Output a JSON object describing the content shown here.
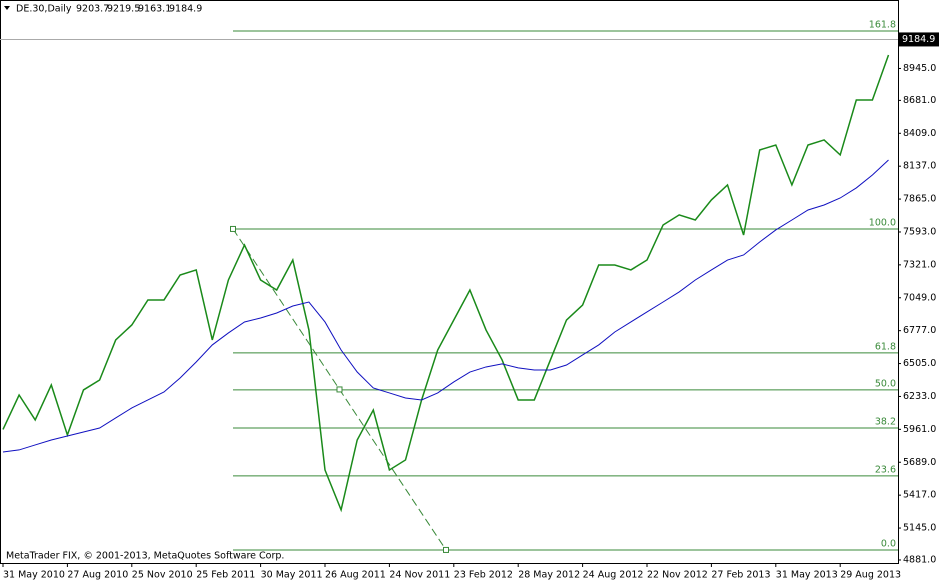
{
  "chart_data": {
    "type": "line",
    "symbol": "DE.30,Daily",
    "ohlc": [
      9203.7,
      9219.5,
      9163.1,
      9184.9
    ],
    "copyright": "MetaTrader FIX, © 2001-2013, MetaQuotes Software Corp.",
    "last_price": 9184.9,
    "categories": [
      "31 May 2010",
      null,
      null,
      null,
      "27 Aug 2010",
      null,
      null,
      null,
      "25 Nov 2010",
      null,
      null,
      null,
      "25 Feb 2011",
      null,
      null,
      null,
      "30 May 2011",
      null,
      null,
      null,
      "26 Aug 2011",
      null,
      null,
      null,
      "24 Nov 2011",
      null,
      null,
      null,
      "23 Feb 2012",
      null,
      null,
      null,
      "28 May 2012",
      null,
      null,
      null,
      "24 Aug 2012",
      null,
      null,
      null,
      "22 Nov 2012",
      null,
      null,
      null,
      "27 Feb 2013",
      null,
      null,
      null,
      "31 May 2013",
      null,
      null,
      null,
      "29 Aug 2013",
      null,
      null,
      null
    ],
    "series": [
      {
        "color": "#1a8a1a",
        "values": [
          5960,
          6245,
          6039,
          6328,
          5915,
          6287,
          6369,
          6700,
          6824,
          7031,
          7031,
          7237,
          7279,
          6700,
          7196,
          7485,
          7196,
          7113,
          7361,
          6783,
          5625,
          5295,
          5873,
          6121,
          5625,
          5708,
          6204,
          6617,
          6865,
          7113,
          6783,
          6535,
          6204,
          6204,
          6535,
          6865,
          6989,
          7320,
          7320,
          7279,
          7361,
          7651,
          7734,
          7692,
          7858,
          7982,
          7568,
          8271,
          8312,
          7982,
          8312,
          8354,
          8230,
          8684,
          8684,
          9056
        ]
      },
      {
        "color": "#1010c0",
        "values": [
          5774,
          5791,
          5832,
          5873,
          5906,
          5939,
          5972,
          6055,
          6138,
          6204,
          6270,
          6386,
          6518,
          6659,
          6758,
          6849,
          6882,
          6923,
          6981,
          7014,
          6849,
          6617,
          6435,
          6303,
          6262,
          6220,
          6204,
          6262,
          6353,
          6435,
          6477,
          6502,
          6469,
          6452,
          6452,
          6493,
          6576,
          6659,
          6766,
          6849,
          6932,
          7014,
          7097,
          7196,
          7279,
          7361,
          7403,
          7510,
          7610,
          7692,
          7775,
          7816,
          7874,
          7957,
          8064,
          8188
        ]
      }
    ],
    "fib_levels": [
      {
        "label": "161.8",
        "price": 9255
      },
      {
        "label": "100.0",
        "price": 7618
      },
      {
        "label": "61.8",
        "price": 6593
      },
      {
        "label": "50.0",
        "price": 6287
      },
      {
        "label": "38.2",
        "price": 5972
      },
      {
        "label": "23.6",
        "price": 5576
      },
      {
        "label": "0.0",
        "price": 4964
      }
    ],
    "fib_color": "#3a8a3a",
    "ylim": [
      4856,
      9511
    ],
    "yticks": [
      {
        "value": 4881,
        "label": "4881.0"
      },
      {
        "value": 5145,
        "label": "5145.0"
      },
      {
        "value": 5417,
        "label": "5417.0"
      },
      {
        "value": 5689,
        "label": "5689.0"
      },
      {
        "value": 5961,
        "label": "5961.0"
      },
      {
        "value": 6233,
        "label": "6233.0"
      },
      {
        "value": 6505,
        "label": "6505.0"
      },
      {
        "value": 6777,
        "label": "6777.0"
      },
      {
        "value": 7049,
        "label": "7049.0"
      },
      {
        "value": 7321,
        "label": "7321.0"
      },
      {
        "value": 7593,
        "label": "7593.0"
      },
      {
        "value": 7865,
        "label": "7865.0"
      },
      {
        "value": 8137,
        "label": "8137.0"
      },
      {
        "value": 8409,
        "label": "8409.0"
      },
      {
        "value": 8681,
        "label": "8681.0"
      },
      {
        "value": 8945,
        "label": "8945.0"
      }
    ],
    "grid": false
  }
}
